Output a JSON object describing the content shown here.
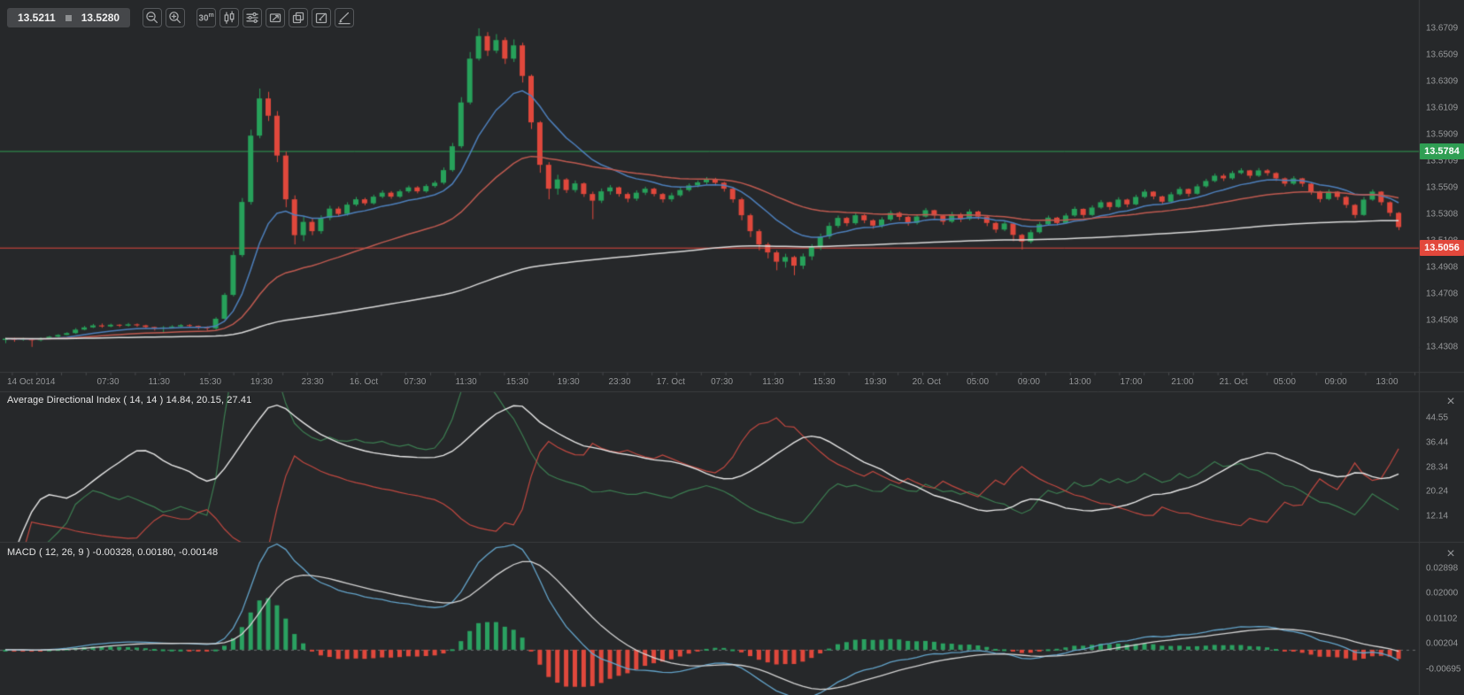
{
  "toolbar": {
    "bid": "13.5211",
    "ask": "13.5280",
    "timeframe_value": "30",
    "timeframe_unit": "m"
  },
  "price_pane": {
    "axis": {
      "min": 13.412,
      "max": 13.6922,
      "ticks": [
        "13.6709",
        "13.6509",
        "13.6309",
        "13.6109",
        "13.5909",
        "13.5709",
        "13.5509",
        "13.5308",
        "13.5108",
        "13.4908",
        "13.4708",
        "13.4508",
        "13.4308"
      ]
    },
    "level_lines": [
      {
        "label": "13.5784",
        "value": 13.5784,
        "color": "#2f9e53"
      },
      {
        "label": "13.5056",
        "value": 13.5056,
        "color": "#e2483c"
      }
    ]
  },
  "time_axis": {
    "labels": [
      "14 Oct 2014",
      "07:30",
      "11:30",
      "15:30",
      "19:30",
      "23:30",
      "16. Oct",
      "07:30",
      "11:30",
      "15:30",
      "19:30",
      "23:30",
      "17. Oct",
      "07:30",
      "11:30",
      "15:30",
      "19:30",
      "20. Oct",
      "05:00",
      "09:00",
      "13:00",
      "17:00",
      "21:00",
      "21. Oct",
      "05:00",
      "09:00",
      "13:00"
    ]
  },
  "adx_pane": {
    "title": "Average Directional Index ( 14, 14 ) 14.84, 20.15, 27.41",
    "period": 14,
    "close_icon": "×",
    "axis": {
      "min": 3.7,
      "max": 53.0,
      "ticks": [
        "44.55",
        "36.44",
        "28.34",
        "20.24",
        "12.14"
      ]
    }
  },
  "macd_pane": {
    "title": "MACD ( 12, 26, 9 ) -0.00328, 0.00180, -0.00148",
    "fast": 12,
    "slow": 26,
    "signal": 9,
    "close_icon": "×",
    "axis": {
      "min": -0.0161,
      "max": 0.0381,
      "ticks": [
        "0.02898",
        "0.02000",
        "0.01102",
        "0.00204",
        "-0.00695"
      ]
    }
  },
  "colors": {
    "background": "#26282a",
    "border": "#3a3c3e",
    "minor_tick": "#47494c",
    "candle_up": "#27a15a",
    "candle_down": "#e0483c",
    "ma_fast": "#4d7fbb",
    "ma_medium": "#bf5a50",
    "ma_slow": "#d9d9d9",
    "plus_di": "#3c7d51",
    "minus_di": "#c04840",
    "adx_line": "#e6e6e6",
    "macd_line": "#63a3c9",
    "signal_line": "#d4d4d4",
    "hist_up": "#2aa161",
    "hist_down": "#e0483c",
    "zero_line": "#6a6c6e"
  },
  "chart_data": {
    "type": "candlestick",
    "timeframe": "30m",
    "bid": 13.5211,
    "ask": 13.528,
    "price_base": 13.4,
    "price_unit": 0.0001,
    "first_open": 360,
    "overlays": [
      {
        "name": "ma-fast",
        "type": "ema",
        "period": 12,
        "color": "#4d7fbb"
      },
      {
        "name": "ma-medium",
        "type": "ema",
        "period": 34,
        "color": "#bf5a50"
      },
      {
        "name": "ma-slow",
        "type": "ema",
        "period": 150,
        "color": "#d9d9d9"
      }
    ],
    "candles_chl": [
      [
        370,
        378,
        336
      ],
      [
        362,
        376,
        346
      ],
      [
        371,
        377,
        354
      ],
      [
        358,
        374,
        308
      ],
      [
        372,
        380,
        350
      ],
      [
        385,
        391,
        368
      ],
      [
        398,
        404,
        380
      ],
      [
        412,
        419,
        396
      ],
      [
        438,
        450,
        406
      ],
      [
        455,
        466,
        433
      ],
      [
        470,
        481,
        450
      ],
      [
        462,
        484,
        452
      ],
      [
        475,
        483,
        456
      ],
      [
        468,
        479,
        457
      ],
      [
        478,
        489,
        461
      ],
      [
        470,
        485,
        459
      ],
      [
        458,
        475,
        445
      ],
      [
        448,
        461,
        431
      ],
      [
        455,
        465,
        418
      ],
      [
        462,
        471,
        447
      ],
      [
        472,
        479,
        456
      ],
      [
        466,
        479,
        453
      ],
      [
        458,
        469,
        441
      ],
      [
        448,
        463,
        433
      ],
      [
        520,
        532,
        438
      ],
      [
        700,
        715,
        512
      ],
      [
        1000,
        1030,
        688
      ],
      [
        1400,
        1430,
        985
      ],
      [
        1900,
        1945,
        1380
      ],
      [
        2180,
        2255,
        1880
      ],
      [
        2050,
        2230,
        2010
      ],
      [
        1750,
        2085,
        1700
      ],
      [
        1420,
        1780,
        1360
      ],
      [
        1150,
        1450,
        1080
      ],
      [
        1250,
        1290,
        1105
      ],
      [
        1180,
        1275,
        1150
      ],
      [
        1280,
        1300,
        1160
      ],
      [
        1350,
        1372,
        1262
      ],
      [
        1310,
        1365,
        1290
      ],
      [
        1380,
        1398,
        1296
      ],
      [
        1420,
        1438,
        1368
      ],
      [
        1390,
        1432,
        1375
      ],
      [
        1440,
        1455,
        1380
      ],
      [
        1470,
        1488,
        1428
      ],
      [
        1440,
        1482,
        1424
      ],
      [
        1480,
        1494,
        1430
      ],
      [
        1510,
        1524,
        1468
      ],
      [
        1480,
        1520,
        1465
      ],
      [
        1520,
        1534,
        1470
      ],
      [
        1545,
        1560,
        1508
      ],
      [
        1640,
        1660,
        1532
      ],
      [
        1820,
        1845,
        1628
      ],
      [
        2150,
        2190,
        1805
      ],
      [
        2480,
        2530,
        2135
      ],
      [
        2650,
        2709,
        2465
      ],
      [
        2540,
        2680,
        2500
      ],
      [
        2620,
        2665,
        2520
      ],
      [
        2480,
        2640,
        2440
      ],
      [
        2580,
        2625,
        2455
      ],
      [
        2350,
        2600,
        2300
      ],
      [
        2000,
        2360,
        1950
      ],
      [
        1680,
        2010,
        1620
      ],
      [
        1500,
        1700,
        1420
      ],
      [
        1570,
        1605,
        1455
      ],
      [
        1490,
        1580,
        1468
      ],
      [
        1540,
        1562,
        1472
      ],
      [
        1460,
        1548,
        1438
      ],
      [
        1410,
        1478,
        1270
      ],
      [
        1480,
        1502,
        1392
      ],
      [
        1510,
        1528,
        1455
      ],
      [
        1460,
        1516,
        1440
      ],
      [
        1425,
        1472,
        1398
      ],
      [
        1470,
        1488,
        1408
      ],
      [
        1500,
        1515,
        1452
      ],
      [
        1460,
        1508,
        1442
      ],
      [
        1420,
        1468,
        1396
      ],
      [
        1450,
        1470,
        1402
      ],
      [
        1490,
        1508,
        1438
      ],
      [
        1525,
        1540,
        1478
      ],
      [
        1548,
        1562,
        1510
      ],
      [
        1570,
        1588,
        1532
      ],
      [
        1545,
        1582,
        1525
      ],
      [
        1500,
        1552,
        1478
      ],
      [
        1420,
        1512,
        1395
      ],
      [
        1300,
        1432,
        1262
      ],
      [
        1180,
        1312,
        1135
      ],
      [
        1080,
        1195,
        1035
      ],
      [
        1020,
        1095,
        975
      ],
      [
        950,
        1035,
        885
      ],
      [
        985,
        1010,
        905
      ],
      [
        920,
        995,
        848
      ],
      [
        990,
        1012,
        895
      ],
      [
        1060,
        1082,
        962
      ],
      [
        1140,
        1162,
        1038
      ],
      [
        1220,
        1245,
        1122
      ],
      [
        1280,
        1298,
        1205
      ],
      [
        1240,
        1288,
        1218
      ],
      [
        1300,
        1316,
        1228
      ],
      [
        1262,
        1308,
        1240
      ],
      [
        1222,
        1270,
        1198
      ],
      [
        1268,
        1285,
        1205
      ],
      [
        1318,
        1336,
        1255
      ],
      [
        1288,
        1328,
        1262
      ],
      [
        1242,
        1295,
        1222
      ],
      [
        1290,
        1308,
        1230
      ],
      [
        1338,
        1355,
        1282
      ],
      [
        1298,
        1342,
        1275
      ],
      [
        1252,
        1305,
        1228
      ],
      [
        1308,
        1325,
        1242
      ],
      [
        1272,
        1318,
        1248
      ],
      [
        1328,
        1345,
        1262
      ],
      [
        1290,
        1335,
        1268
      ],
      [
        1242,
        1298,
        1218
      ],
      [
        1192,
        1250,
        1168
      ],
      [
        1238,
        1256,
        1180
      ],
      [
        1152,
        1245,
        1105
      ],
      [
        1102,
        1160,
        1042
      ],
      [
        1172,
        1190,
        1088
      ],
      [
        1232,
        1250,
        1162
      ],
      [
        1282,
        1298,
        1222
      ],
      [
        1242,
        1288,
        1225
      ],
      [
        1298,
        1315,
        1235
      ],
      [
        1348,
        1365,
        1288
      ],
      [
        1302,
        1352,
        1282
      ],
      [
        1358,
        1375,
        1295
      ],
      [
        1398,
        1415,
        1348
      ],
      [
        1362,
        1402,
        1340
      ],
      [
        1418,
        1436,
        1355
      ],
      [
        1382,
        1425,
        1360
      ],
      [
        1438,
        1455,
        1375
      ],
      [
        1478,
        1495,
        1428
      ],
      [
        1442,
        1482,
        1420
      ],
      [
        1402,
        1448,
        1382
      ],
      [
        1458,
        1475,
        1395
      ],
      [
        1498,
        1515,
        1448
      ],
      [
        1462,
        1502,
        1440
      ],
      [
        1518,
        1535,
        1455
      ],
      [
        1558,
        1575,
        1508
      ],
      [
        1598,
        1615,
        1548
      ],
      [
        1578,
        1612,
        1558
      ],
      [
        1618,
        1635,
        1568
      ],
      [
        1638,
        1655,
        1608
      ],
      [
        1598,
        1642,
        1578
      ],
      [
        1638,
        1656,
        1588
      ],
      [
        1618,
        1648,
        1598
      ],
      [
        1578,
        1625,
        1558
      ],
      [
        1538,
        1585,
        1518
      ],
      [
        1578,
        1595,
        1528
      ],
      [
        1538,
        1582,
        1515
      ],
      [
        1478,
        1545,
        1455
      ],
      [
        1422,
        1485,
        1398
      ],
      [
        1478,
        1495,
        1412
      ],
      [
        1438,
        1482,
        1415
      ],
      [
        1378,
        1445,
        1355
      ],
      [
        1302,
        1385,
        1278
      ],
      [
        1418,
        1438,
        1295
      ],
      [
        1478,
        1495,
        1408
      ],
      [
        1398,
        1482,
        1375
      ],
      [
        1318,
        1405,
        1292
      ],
      [
        1211,
        1325,
        1188
      ]
    ]
  }
}
